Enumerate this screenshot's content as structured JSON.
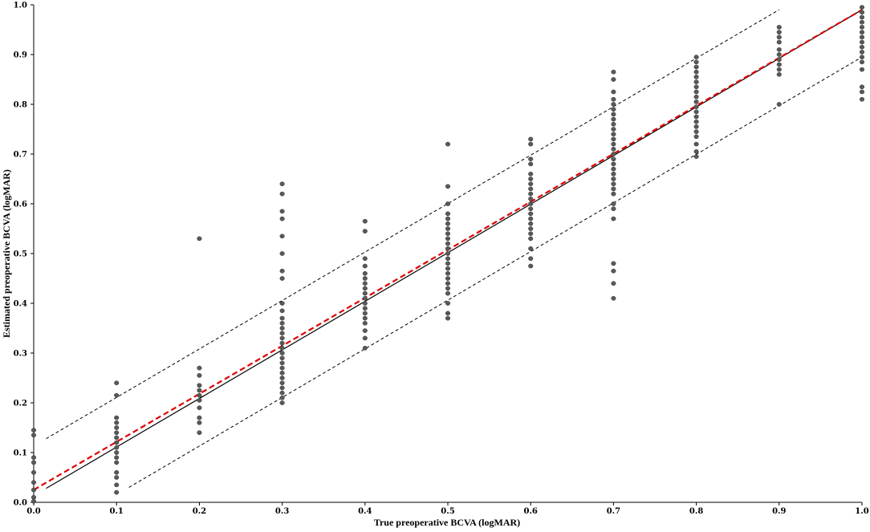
{
  "chart_data": {
    "type": "scatter",
    "title": "",
    "xlabel": "True preoperative BCVA (logMAR)",
    "ylabel": "Estimated preoperative BCVA (logMAR)",
    "xlim": [
      0.0,
      1.0
    ],
    "ylim": [
      0.0,
      1.0
    ],
    "x_ticks": [
      "0.0",
      "0.1",
      "0.2",
      "0.3",
      "0.4",
      "0.5",
      "0.6",
      "0.7",
      "0.8",
      "0.9",
      "1.0"
    ],
    "y_ticks": [
      "0.0",
      "0.1",
      "0.2",
      "0.3",
      "0.4",
      "0.5",
      "0.6",
      "0.7",
      "0.8",
      "0.9",
      "1.0"
    ],
    "grid": false,
    "legend": "none",
    "colors": {
      "points": "#595959",
      "identity_line": "#000000",
      "regression_line": "#e00000",
      "limits": "#000000"
    },
    "series": [
      {
        "type": "scatter",
        "points": [
          [
            0.0,
            0.145
          ],
          [
            0.0,
            0.135
          ],
          [
            0.0,
            0.09
          ],
          [
            0.0,
            0.08
          ],
          [
            0.0,
            0.06
          ],
          [
            0.0,
            0.04
          ],
          [
            0.0,
            0.025
          ],
          [
            0.0,
            0.01
          ],
          [
            0.0,
            0.002
          ],
          [
            0.1,
            0.24
          ],
          [
            0.1,
            0.215
          ],
          [
            0.1,
            0.17
          ],
          [
            0.1,
            0.16
          ],
          [
            0.1,
            0.15
          ],
          [
            0.1,
            0.14
          ],
          [
            0.1,
            0.13
          ],
          [
            0.1,
            0.12
          ],
          [
            0.1,
            0.11
          ],
          [
            0.1,
            0.1
          ],
          [
            0.1,
            0.09
          ],
          [
            0.1,
            0.08
          ],
          [
            0.1,
            0.06
          ],
          [
            0.1,
            0.05
          ],
          [
            0.1,
            0.035
          ],
          [
            0.1,
            0.02
          ],
          [
            0.2,
            0.53
          ],
          [
            0.2,
            0.27
          ],
          [
            0.2,
            0.255
          ],
          [
            0.2,
            0.235
          ],
          [
            0.2,
            0.225
          ],
          [
            0.2,
            0.215
          ],
          [
            0.2,
            0.205
          ],
          [
            0.2,
            0.19
          ],
          [
            0.2,
            0.17
          ],
          [
            0.2,
            0.16
          ],
          [
            0.2,
            0.14
          ],
          [
            0.3,
            0.64
          ],
          [
            0.3,
            0.62
          ],
          [
            0.3,
            0.585
          ],
          [
            0.3,
            0.57
          ],
          [
            0.3,
            0.535
          ],
          [
            0.3,
            0.5
          ],
          [
            0.3,
            0.465
          ],
          [
            0.3,
            0.45
          ],
          [
            0.3,
            0.4
          ],
          [
            0.3,
            0.385
          ],
          [
            0.3,
            0.37
          ],
          [
            0.3,
            0.36
          ],
          [
            0.3,
            0.35
          ],
          [
            0.3,
            0.34
          ],
          [
            0.3,
            0.33
          ],
          [
            0.3,
            0.32
          ],
          [
            0.3,
            0.31
          ],
          [
            0.3,
            0.3
          ],
          [
            0.3,
            0.29
          ],
          [
            0.3,
            0.28
          ],
          [
            0.3,
            0.27
          ],
          [
            0.3,
            0.26
          ],
          [
            0.3,
            0.25
          ],
          [
            0.3,
            0.24
          ],
          [
            0.3,
            0.23
          ],
          [
            0.3,
            0.22
          ],
          [
            0.3,
            0.21
          ],
          [
            0.3,
            0.2
          ],
          [
            0.4,
            0.565
          ],
          [
            0.4,
            0.545
          ],
          [
            0.4,
            0.49
          ],
          [
            0.4,
            0.475
          ],
          [
            0.4,
            0.46
          ],
          [
            0.4,
            0.45
          ],
          [
            0.4,
            0.44
          ],
          [
            0.4,
            0.43
          ],
          [
            0.4,
            0.42
          ],
          [
            0.4,
            0.41
          ],
          [
            0.4,
            0.4
          ],
          [
            0.4,
            0.39
          ],
          [
            0.4,
            0.38
          ],
          [
            0.4,
            0.37
          ],
          [
            0.4,
            0.36
          ],
          [
            0.4,
            0.345
          ],
          [
            0.4,
            0.33
          ],
          [
            0.4,
            0.31
          ],
          [
            0.5,
            0.72
          ],
          [
            0.5,
            0.635
          ],
          [
            0.5,
            0.6
          ],
          [
            0.5,
            0.58
          ],
          [
            0.5,
            0.57
          ],
          [
            0.5,
            0.56
          ],
          [
            0.5,
            0.55
          ],
          [
            0.5,
            0.54
          ],
          [
            0.5,
            0.53
          ],
          [
            0.5,
            0.52
          ],
          [
            0.5,
            0.51
          ],
          [
            0.5,
            0.5
          ],
          [
            0.5,
            0.49
          ],
          [
            0.5,
            0.48
          ],
          [
            0.5,
            0.47
          ],
          [
            0.5,
            0.46
          ],
          [
            0.5,
            0.45
          ],
          [
            0.5,
            0.44
          ],
          [
            0.5,
            0.43
          ],
          [
            0.5,
            0.42
          ],
          [
            0.5,
            0.4
          ],
          [
            0.5,
            0.38
          ],
          [
            0.5,
            0.37
          ],
          [
            0.6,
            0.73
          ],
          [
            0.6,
            0.72
          ],
          [
            0.6,
            0.69
          ],
          [
            0.6,
            0.68
          ],
          [
            0.6,
            0.66
          ],
          [
            0.6,
            0.65
          ],
          [
            0.6,
            0.64
          ],
          [
            0.6,
            0.63
          ],
          [
            0.6,
            0.62
          ],
          [
            0.6,
            0.61
          ],
          [
            0.6,
            0.6
          ],
          [
            0.6,
            0.59
          ],
          [
            0.6,
            0.58
          ],
          [
            0.6,
            0.57
          ],
          [
            0.6,
            0.56
          ],
          [
            0.6,
            0.55
          ],
          [
            0.6,
            0.54
          ],
          [
            0.6,
            0.53
          ],
          [
            0.6,
            0.51
          ],
          [
            0.6,
            0.49
          ],
          [
            0.6,
            0.475
          ],
          [
            0.7,
            0.865
          ],
          [
            0.7,
            0.85
          ],
          [
            0.7,
            0.825
          ],
          [
            0.7,
            0.81
          ],
          [
            0.7,
            0.8
          ],
          [
            0.7,
            0.79
          ],
          [
            0.7,
            0.78
          ],
          [
            0.7,
            0.77
          ],
          [
            0.7,
            0.76
          ],
          [
            0.7,
            0.75
          ],
          [
            0.7,
            0.74
          ],
          [
            0.7,
            0.73
          ],
          [
            0.7,
            0.72
          ],
          [
            0.7,
            0.71
          ],
          [
            0.7,
            0.7
          ],
          [
            0.7,
            0.69
          ],
          [
            0.7,
            0.68
          ],
          [
            0.7,
            0.67
          ],
          [
            0.7,
            0.66
          ],
          [
            0.7,
            0.65
          ],
          [
            0.7,
            0.64
          ],
          [
            0.7,
            0.63
          ],
          [
            0.7,
            0.62
          ],
          [
            0.7,
            0.6
          ],
          [
            0.7,
            0.59
          ],
          [
            0.7,
            0.57
          ],
          [
            0.7,
            0.48
          ],
          [
            0.7,
            0.465
          ],
          [
            0.7,
            0.44
          ],
          [
            0.7,
            0.41
          ],
          [
            0.8,
            0.895
          ],
          [
            0.8,
            0.885
          ],
          [
            0.8,
            0.875
          ],
          [
            0.8,
            0.865
          ],
          [
            0.8,
            0.855
          ],
          [
            0.8,
            0.845
          ],
          [
            0.8,
            0.835
          ],
          [
            0.8,
            0.825
          ],
          [
            0.8,
            0.815
          ],
          [
            0.8,
            0.805
          ],
          [
            0.8,
            0.795
          ],
          [
            0.8,
            0.785
          ],
          [
            0.8,
            0.775
          ],
          [
            0.8,
            0.765
          ],
          [
            0.8,
            0.755
          ],
          [
            0.8,
            0.745
          ],
          [
            0.8,
            0.735
          ],
          [
            0.8,
            0.72
          ],
          [
            0.8,
            0.705
          ],
          [
            0.8,
            0.695
          ],
          [
            0.9,
            0.955
          ],
          [
            0.9,
            0.945
          ],
          [
            0.9,
            0.935
          ],
          [
            0.9,
            0.925
          ],
          [
            0.9,
            0.91
          ],
          [
            0.9,
            0.9
          ],
          [
            0.9,
            0.89
          ],
          [
            0.9,
            0.88
          ],
          [
            0.9,
            0.87
          ],
          [
            0.9,
            0.86
          ],
          [
            0.9,
            0.8
          ],
          [
            1.0,
            0.995
          ],
          [
            1.0,
            0.985
          ],
          [
            1.0,
            0.975
          ],
          [
            1.0,
            0.965
          ],
          [
            1.0,
            0.955
          ],
          [
            1.0,
            0.945
          ],
          [
            1.0,
            0.935
          ],
          [
            1.0,
            0.925
          ],
          [
            1.0,
            0.915
          ],
          [
            1.0,
            0.905
          ],
          [
            1.0,
            0.895
          ],
          [
            1.0,
            0.885
          ],
          [
            1.0,
            0.87
          ],
          [
            1.0,
            0.835
          ],
          [
            1.0,
            0.825
          ],
          [
            1.0,
            0.81
          ]
        ]
      },
      {
        "type": "line",
        "style": "solid",
        "points": [
          [
            0.015,
            0.028
          ],
          [
            1.0,
            0.99
          ]
        ]
      },
      {
        "type": "line",
        "style": "dashed",
        "points": [
          [
            0.0,
            0.025
          ],
          [
            1.0,
            0.99
          ]
        ]
      },
      {
        "type": "line",
        "style": "dotted",
        "points": [
          [
            0.015,
            0.128
          ],
          [
            0.9,
            0.99
          ]
        ]
      },
      {
        "type": "line",
        "style": "dotted",
        "points": [
          [
            0.115,
            0.03
          ],
          [
            1.0,
            0.895
          ]
        ]
      }
    ]
  }
}
